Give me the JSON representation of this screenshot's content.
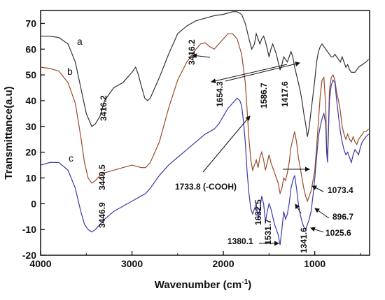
{
  "chart_data": {
    "type": "line",
    "xlabel": "Wavenumber (cm",
    "xlabel_sup": "-1",
    "xlabel_tail": ")",
    "ylabel": "Transmittance(a.u)",
    "xlim": [
      4000,
      400
    ],
    "ylim": [
      -20,
      75
    ],
    "x_ticks": [
      4000,
      3000,
      2000,
      1000
    ],
    "y_ticks": [
      -20,
      -10,
      0,
      10,
      20,
      30,
      40,
      50,
      60,
      70
    ],
    "grid": false,
    "series": [
      {
        "name": "a",
        "color": "#333333",
        "points": [
          [
            4000,
            65
          ],
          [
            3900,
            65
          ],
          [
            3800,
            64.5
          ],
          [
            3700,
            62
          ],
          [
            3620,
            55
          ],
          [
            3560,
            45
          ],
          [
            3500,
            35
          ],
          [
            3440,
            30
          ],
          [
            3400,
            31
          ],
          [
            3350,
            34
          ],
          [
            3300,
            40
          ],
          [
            3200,
            45
          ],
          [
            3100,
            47
          ],
          [
            3050,
            49
          ],
          [
            3000,
            51
          ],
          [
            2960,
            53
          ],
          [
            2930,
            50
          ],
          [
            2900,
            46
          ],
          [
            2860,
            41
          ],
          [
            2830,
            40
          ],
          [
            2800,
            41
          ],
          [
            2750,
            45
          ],
          [
            2700,
            49
          ],
          [
            2600,
            58
          ],
          [
            2500,
            66
          ],
          [
            2400,
            69
          ],
          [
            2300,
            71
          ],
          [
            2200,
            72
          ],
          [
            2100,
            73
          ],
          [
            2000,
            73.5
          ],
          [
            1900,
            74.5
          ],
          [
            1850,
            74.5
          ],
          [
            1800,
            73.5
          ],
          [
            1760,
            70
          ],
          [
            1720,
            64
          ],
          [
            1690,
            60
          ],
          [
            1660,
            62
          ],
          [
            1640,
            66
          ],
          [
            1620,
            64
          ],
          [
            1600,
            62
          ],
          [
            1580,
            64
          ],
          [
            1560,
            65
          ],
          [
            1540,
            63
          ],
          [
            1520,
            60
          ],
          [
            1500,
            57
          ],
          [
            1480,
            60
          ],
          [
            1460,
            62
          ],
          [
            1440,
            60
          ],
          [
            1420,
            58
          ],
          [
            1400,
            55
          ],
          [
            1380,
            52
          ],
          [
            1360,
            54
          ],
          [
            1340,
            57
          ],
          [
            1320,
            56
          ],
          [
            1300,
            55
          ],
          [
            1280,
            57
          ],
          [
            1260,
            59
          ],
          [
            1240,
            57
          ],
          [
            1220,
            53
          ],
          [
            1200,
            50
          ],
          [
            1180,
            47
          ],
          [
            1160,
            44
          ],
          [
            1140,
            40
          ],
          [
            1120,
            35
          ],
          [
            1100,
            31
          ],
          [
            1080,
            26
          ],
          [
            1060,
            30
          ],
          [
            1040,
            36
          ],
          [
            1020,
            42
          ],
          [
            1000,
            48
          ],
          [
            980,
            55
          ],
          [
            960,
            59
          ],
          [
            940,
            61
          ],
          [
            920,
            62
          ],
          [
            900,
            61
          ],
          [
            880,
            60
          ],
          [
            860,
            59
          ],
          [
            840,
            58
          ],
          [
            820,
            57
          ],
          [
            800,
            57
          ],
          [
            780,
            58
          ],
          [
            760,
            57
          ],
          [
            740,
            56
          ],
          [
            720,
            55
          ],
          [
            700,
            57
          ],
          [
            680,
            55
          ],
          [
            660,
            53
          ],
          [
            640,
            54
          ],
          [
            620,
            52
          ],
          [
            600,
            51
          ],
          [
            560,
            51
          ],
          [
            520,
            53
          ],
          [
            480,
            54
          ],
          [
            440,
            55
          ],
          [
            410,
            56
          ]
        ]
      },
      {
        "name": "b",
        "color": "#9a4a2a",
        "points": [
          [
            4000,
            53
          ],
          [
            3900,
            52.5
          ],
          [
            3800,
            51.5
          ],
          [
            3700,
            47
          ],
          [
            3620,
            39
          ],
          [
            3560,
            26
          ],
          [
            3520,
            16
          ],
          [
            3480,
            10
          ],
          [
            3440,
            8
          ],
          [
            3400,
            9
          ],
          [
            3350,
            11
          ],
          [
            3300,
            12
          ],
          [
            3200,
            13
          ],
          [
            3100,
            14
          ],
          [
            3000,
            15
          ],
          [
            2900,
            14
          ],
          [
            2850,
            14
          ],
          [
            2800,
            16
          ],
          [
            2700,
            24
          ],
          [
            2600,
            37
          ],
          [
            2500,
            48
          ],
          [
            2400,
            55
          ],
          [
            2300,
            60
          ],
          [
            2250,
            62
          ],
          [
            2200,
            62.5
          ],
          [
            2150,
            61
          ],
          [
            2100,
            60
          ],
          [
            2050,
            62
          ],
          [
            2000,
            64
          ],
          [
            1950,
            66
          ],
          [
            1900,
            66
          ],
          [
            1850,
            64
          ],
          [
            1800,
            58
          ],
          [
            1760,
            47
          ],
          [
            1740,
            36
          ],
          [
            1720,
            25
          ],
          [
            1700,
            17
          ],
          [
            1680,
            13
          ],
          [
            1660,
            15
          ],
          [
            1640,
            17
          ],
          [
            1620,
            14
          ],
          [
            1600,
            18
          ],
          [
            1580,
            20
          ],
          [
            1560,
            17
          ],
          [
            1540,
            13
          ],
          [
            1520,
            16
          ],
          [
            1500,
            19
          ],
          [
            1480,
            16
          ],
          [
            1460,
            14
          ],
          [
            1440,
            12
          ],
          [
            1420,
            10
          ],
          [
            1400,
            8
          ],
          [
            1380,
            4
          ],
          [
            1360,
            6
          ],
          [
            1340,
            10
          ],
          [
            1320,
            9
          ],
          [
            1300,
            12
          ],
          [
            1280,
            16
          ],
          [
            1260,
            22
          ],
          [
            1240,
            25
          ],
          [
            1220,
            28
          ],
          [
            1200,
            24
          ],
          [
            1180,
            18
          ],
          [
            1160,
            14
          ],
          [
            1140,
            10
          ],
          [
            1120,
            6
          ],
          [
            1100,
            3
          ],
          [
            1080,
            1
          ],
          [
            1060,
            3
          ],
          [
            1040,
            5
          ],
          [
            1020,
            9
          ],
          [
            1000,
            13
          ],
          [
            980,
            22
          ],
          [
            960,
            32
          ],
          [
            940,
            42
          ],
          [
            920,
            48
          ],
          [
            900,
            49
          ],
          [
            880,
            38
          ],
          [
            870,
            22
          ],
          [
            860,
            18
          ],
          [
            850,
            30
          ],
          [
            840,
            44
          ],
          [
            820,
            49
          ],
          [
            800,
            50
          ],
          [
            780,
            48
          ],
          [
            760,
            43
          ],
          [
            740,
            40
          ],
          [
            720,
            36
          ],
          [
            700,
            30
          ],
          [
            680,
            27
          ],
          [
            660,
            25
          ],
          [
            640,
            27
          ],
          [
            620,
            25
          ],
          [
            600,
            24
          ],
          [
            580,
            26
          ],
          [
            560,
            24
          ],
          [
            540,
            23
          ],
          [
            520,
            25
          ],
          [
            500,
            26
          ],
          [
            480,
            27
          ],
          [
            460,
            28
          ],
          [
            440,
            28
          ],
          [
            410,
            29
          ]
        ]
      },
      {
        "name": "c",
        "color": "#3a3aa8",
        "points": [
          [
            4000,
            15
          ],
          [
            3900,
            16
          ],
          [
            3800,
            16
          ],
          [
            3700,
            13
          ],
          [
            3620,
            6
          ],
          [
            3560,
            -3
          ],
          [
            3520,
            -8
          ],
          [
            3480,
            -10
          ],
          [
            3440,
            -11
          ],
          [
            3400,
            -10
          ],
          [
            3350,
            -8
          ],
          [
            3300,
            -6
          ],
          [
            3200,
            -3
          ],
          [
            3100,
            -1
          ],
          [
            3000,
            1
          ],
          [
            2900,
            3
          ],
          [
            2850,
            4
          ],
          [
            2800,
            6
          ],
          [
            2700,
            11
          ],
          [
            2600,
            15
          ],
          [
            2500,
            18
          ],
          [
            2400,
            21
          ],
          [
            2300,
            24
          ],
          [
            2200,
            27
          ],
          [
            2100,
            29
          ],
          [
            2050,
            31
          ],
          [
            2000,
            34
          ],
          [
            1950,
            37
          ],
          [
            1900,
            39
          ],
          [
            1850,
            41
          ],
          [
            1820,
            40
          ],
          [
            1800,
            38
          ],
          [
            1780,
            32
          ],
          [
            1760,
            24
          ],
          [
            1740,
            12
          ],
          [
            1720,
            4
          ],
          [
            1700,
            -2
          ],
          [
            1680,
            -4
          ],
          [
            1660,
            -2
          ],
          [
            1640,
            0
          ],
          [
            1620,
            -6
          ],
          [
            1600,
            -2
          ],
          [
            1580,
            3
          ],
          [
            1560,
            0
          ],
          [
            1540,
            -7
          ],
          [
            1520,
            -3
          ],
          [
            1500,
            0
          ],
          [
            1480,
            -2
          ],
          [
            1460,
            -5
          ],
          [
            1440,
            -8
          ],
          [
            1420,
            -10
          ],
          [
            1400,
            -12
          ],
          [
            1380,
            -16
          ],
          [
            1360,
            -10
          ],
          [
            1340,
            -3
          ],
          [
            1320,
            -6
          ],
          [
            1300,
            -4
          ],
          [
            1280,
            0
          ],
          [
            1260,
            6
          ],
          [
            1240,
            9
          ],
          [
            1220,
            11
          ],
          [
            1200,
            6
          ],
          [
            1180,
            0
          ],
          [
            1160,
            -4
          ],
          [
            1140,
            -7
          ],
          [
            1120,
            -9
          ],
          [
            1100,
            -10
          ],
          [
            1080,
            -8
          ],
          [
            1060,
            -6
          ],
          [
            1040,
            -3
          ],
          [
            1020,
            3
          ],
          [
            1000,
            10
          ],
          [
            980,
            18
          ],
          [
            960,
            26
          ],
          [
            940,
            30
          ],
          [
            920,
            33
          ],
          [
            900,
            35
          ],
          [
            880,
            31
          ],
          [
            870,
            20
          ],
          [
            860,
            16
          ],
          [
            850,
            28
          ],
          [
            840,
            40
          ],
          [
            820,
            46
          ],
          [
            800,
            48
          ],
          [
            780,
            47
          ],
          [
            760,
            40
          ],
          [
            740,
            34
          ],
          [
            720,
            28
          ],
          [
            700,
            24
          ],
          [
            680,
            21
          ],
          [
            660,
            19
          ],
          [
            640,
            20
          ],
          [
            620,
            18
          ],
          [
            600,
            16
          ],
          [
            580,
            19
          ],
          [
            560,
            21
          ],
          [
            540,
            20
          ],
          [
            520,
            19
          ],
          [
            500,
            22
          ],
          [
            480,
            24
          ],
          [
            460,
            25
          ],
          [
            440,
            26
          ],
          [
            410,
            27
          ]
        ]
      }
    ],
    "annotations": [
      {
        "text": "3416.2",
        "vertical": true
      },
      {
        "text": "3440.5",
        "vertical": true
      },
      {
        "text": "3446.9",
        "vertical": true
      },
      {
        "text": "3416.2",
        "vertical": true
      },
      {
        "text": "1654.3",
        "vertical": true
      },
      {
        "text": "1586.7",
        "vertical": true
      },
      {
        "text": "1417.6",
        "vertical": true
      },
      {
        "text": "1733.8 (-COOH)",
        "vertical": false
      },
      {
        "text": "1073.4",
        "vertical": false
      },
      {
        "text": "1632.5",
        "vertical": true
      },
      {
        "text": "1531.7",
        "vertical": true
      },
      {
        "text": "1341.6",
        "vertical": true
      },
      {
        "text": "896.7",
        "vertical": false
      },
      {
        "text": "1025.6",
        "vertical": false
      },
      {
        "text": "1380.1",
        "vertical": false
      }
    ]
  }
}
